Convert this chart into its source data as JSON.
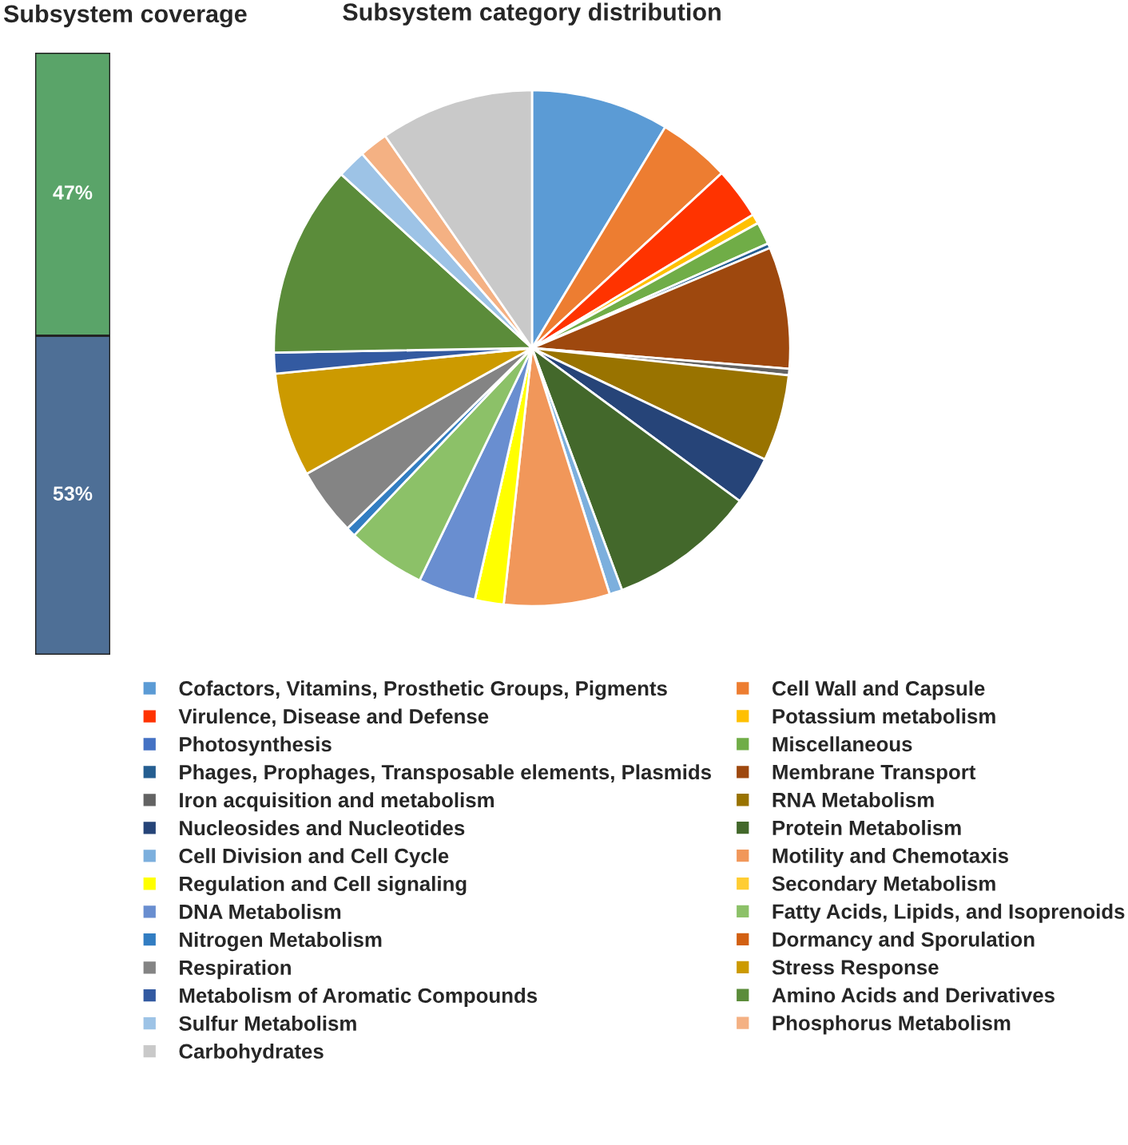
{
  "chart_data": [
    {
      "type": "bar",
      "title": "Subsystem coverage",
      "stacked": true,
      "categories": [
        null
      ],
      "series": [
        {
          "color": "#4e6f96",
          "values": [
            53
          ],
          "value_labels": [
            "53%"
          ]
        },
        {
          "color": "#5aa469",
          "values": [
            47
          ],
          "value_labels": [
            "47%"
          ]
        }
      ]
    },
    {
      "type": "pie",
      "title": "Subsystem category distribution",
      "legend": "bottom",
      "categories": [
        "Cofactors, Vitamins, Prosthetic Groups, Pigments",
        "Cell Wall and Capsule",
        "Virulence, Disease and Defense",
        "Potassium metabolism",
        "Photosynthesis",
        "Miscellaneous",
        "Phages, Prophages, Transposable elements, Plasmids",
        "Membrane Transport",
        "Iron acquisition and metabolism",
        "RNA Metabolism",
        "Nucleosides and Nucleotides",
        "Protein Metabolism",
        "Cell Division and Cell Cycle",
        "Motility and Chemotaxis",
        "Regulation and Cell signaling",
        "Secondary Metabolism",
        "DNA Metabolism",
        "Fatty Acids, Lipids, and Isoprenoids",
        "Nitrogen Metabolism",
        "Dormancy and Sporulation",
        "Respiration",
        "Stress Response",
        "Metabolism of Aromatic Compounds",
        "Amino Acids and Derivatives",
        "Sulfur Metabolism",
        "Phosphorus Metabolism",
        "Carbohydrates"
      ],
      "values": [
        8.6,
        4.5,
        3.2,
        0.6,
        null,
        1.4,
        0.3,
        7.6,
        0.4,
        5.4,
        3.0,
        9.2,
        0.8,
        6.6,
        1.8,
        null,
        3.6,
        4.9,
        0.6,
        null,
        4.2,
        6.5,
        1.3,
        12.0,
        1.8,
        1.8,
        9.6
      ],
      "colors": [
        "#5b9bd5",
        "#ed7d31",
        "#ff3300",
        "#ffc000",
        "#4472c4",
        "#70ad47",
        "#255e91",
        "#9e480e",
        "#636363",
        "#997300",
        "#264478",
        "#43682b",
        "#7cafdd",
        "#f1975a",
        "#ffff00",
        "#ffcd33",
        "#698ed0",
        "#8cc168",
        "#327dc2",
        "#d26012",
        "#848484",
        "#cc9a00",
        "#335aa1",
        "#5b8c3a",
        "#9dc3e6",
        "#f4b183",
        "#c9c9c9"
      ]
    }
  ]
}
